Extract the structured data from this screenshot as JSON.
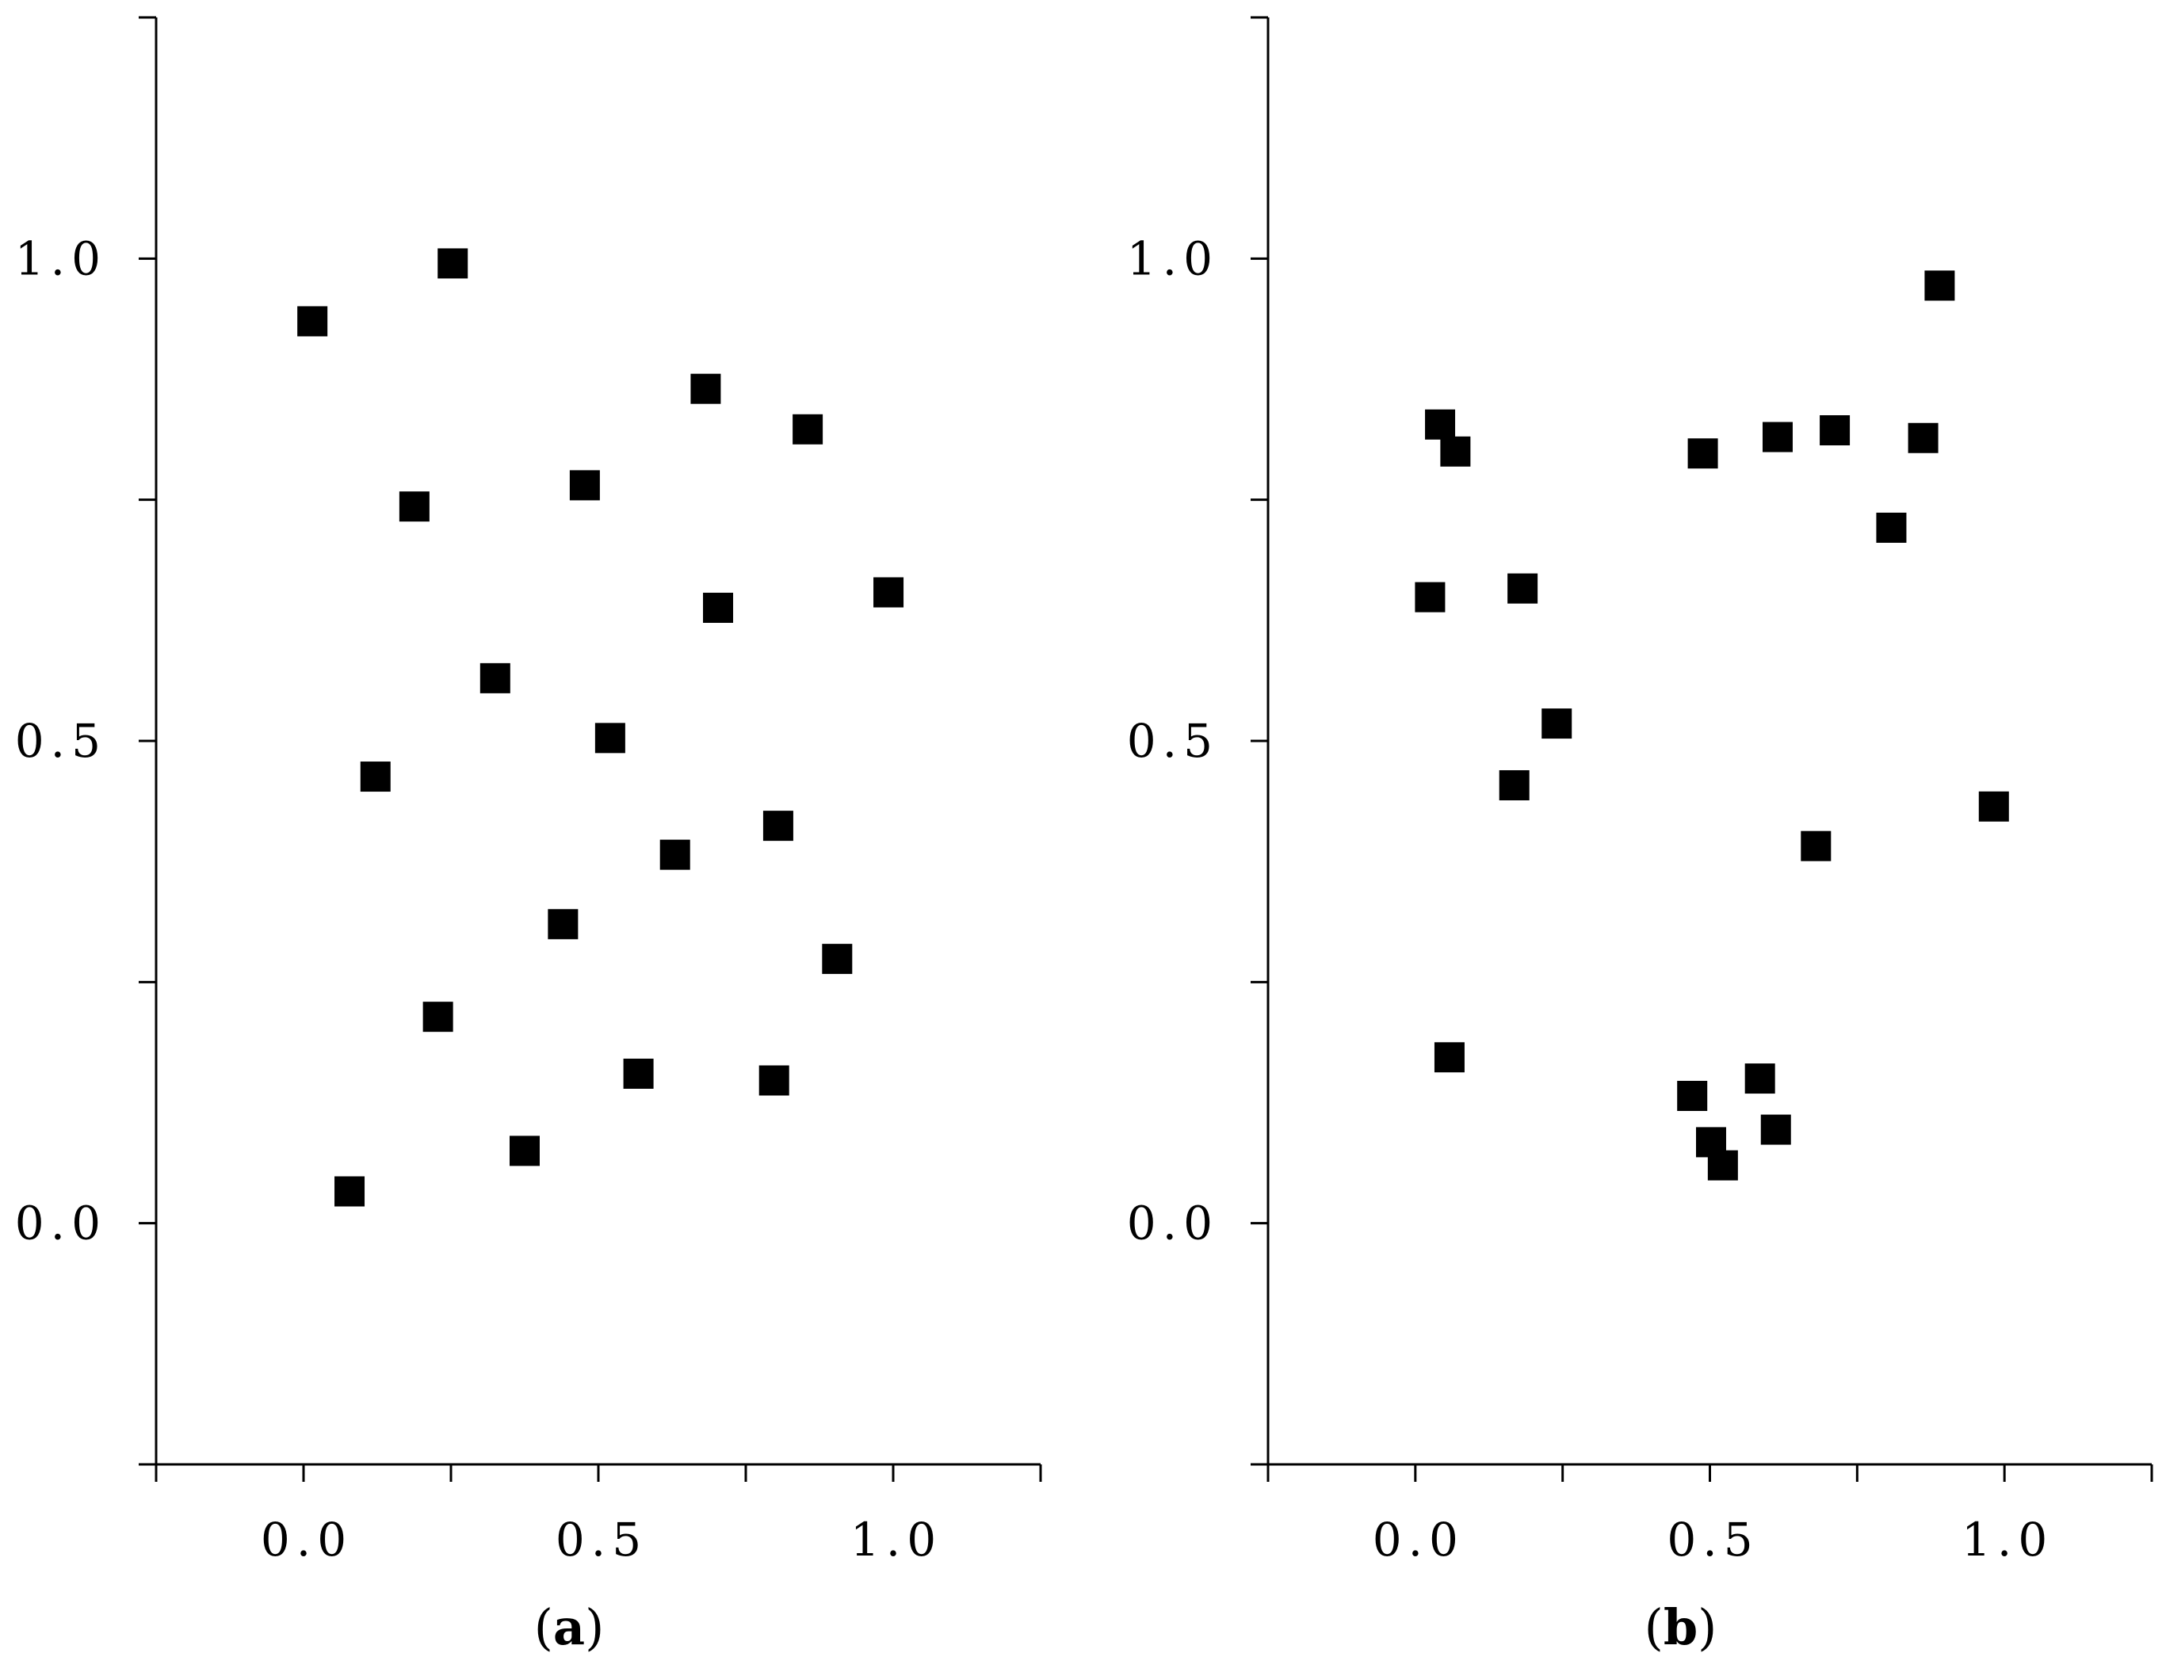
{
  "chart_data": [
    {
      "type": "scatter",
      "panel_label": "a",
      "xlim": [
        -0.25,
        1.25
      ],
      "ylim": [
        -0.25,
        1.25
      ],
      "x_ticks": [
        -0.25,
        0.0,
        0.25,
        0.5,
        0.75,
        1.0,
        1.25
      ],
      "y_ticks": [
        -0.25,
        0.0,
        0.25,
        0.5,
        0.75,
        1.0,
        1.25
      ],
      "x_tick_labels": [
        {
          "value": 0.0,
          "label": "0.0"
        },
        {
          "value": 0.5,
          "label": "0.5"
        },
        {
          "value": 1.0,
          "label": "1.0"
        }
      ],
      "y_tick_labels": [
        {
          "value": 0.0,
          "label": "0.0"
        },
        {
          "value": 0.5,
          "label": "0.5"
        },
        {
          "value": 1.0,
          "label": "1.0"
        }
      ],
      "grid": false,
      "marker": "square",
      "points": [
        {
          "x": 0.015,
          "y": 0.935
        },
        {
          "x": 0.253,
          "y": 0.995
        },
        {
          "x": 0.682,
          "y": 0.865
        },
        {
          "x": 0.855,
          "y": 0.823
        },
        {
          "x": 0.188,
          "y": 0.743
        },
        {
          "x": 0.477,
          "y": 0.765
        },
        {
          "x": 0.703,
          "y": 0.638
        },
        {
          "x": 0.992,
          "y": 0.654
        },
        {
          "x": 0.325,
          "y": 0.565
        },
        {
          "x": 0.52,
          "y": 0.503
        },
        {
          "x": 0.122,
          "y": 0.463
        },
        {
          "x": 0.805,
          "y": 0.412
        },
        {
          "x": 0.63,
          "y": 0.382
        },
        {
          "x": 0.44,
          "y": 0.31
        },
        {
          "x": 0.905,
          "y": 0.274
        },
        {
          "x": 0.228,
          "y": 0.214
        },
        {
          "x": 0.568,
          "y": 0.155
        },
        {
          "x": 0.798,
          "y": 0.148
        },
        {
          "x": 0.375,
          "y": 0.075
        },
        {
          "x": 0.078,
          "y": 0.033
        }
      ]
    },
    {
      "type": "scatter",
      "panel_label": "b",
      "xlim": [
        -0.25,
        1.25
      ],
      "ylim": [
        -0.25,
        1.25
      ],
      "x_ticks": [
        -0.25,
        0.0,
        0.25,
        0.5,
        0.75,
        1.0,
        1.25
      ],
      "y_ticks": [
        -0.25,
        0.0,
        0.25,
        0.5,
        0.75,
        1.0,
        1.25
      ],
      "x_tick_labels": [
        {
          "value": 0.0,
          "label": "0.0"
        },
        {
          "value": 0.5,
          "label": "0.5"
        },
        {
          "value": 1.0,
          "label": "1.0"
        }
      ],
      "y_tick_labels": [
        {
          "value": 0.0,
          "label": "0.0"
        },
        {
          "value": 0.5,
          "label": "0.5"
        },
        {
          "value": 1.0,
          "label": "1.0"
        }
      ],
      "grid": false,
      "marker": "square",
      "points": [
        {
          "x": 0.89,
          "y": 0.972
        },
        {
          "x": 0.042,
          "y": 0.828
        },
        {
          "x": 0.068,
          "y": 0.8
        },
        {
          "x": 0.488,
          "y": 0.798
        },
        {
          "x": 0.615,
          "y": 0.815
        },
        {
          "x": 0.712,
          "y": 0.822
        },
        {
          "x": 0.862,
          "y": 0.814
        },
        {
          "x": 0.808,
          "y": 0.721
        },
        {
          "x": 0.025,
          "y": 0.649
        },
        {
          "x": 0.182,
          "y": 0.658
        },
        {
          "x": 0.24,
          "y": 0.518
        },
        {
          "x": 0.168,
          "y": 0.454
        },
        {
          "x": 0.982,
          "y": 0.432
        },
        {
          "x": 0.68,
          "y": 0.391
        },
        {
          "x": 0.058,
          "y": 0.172
        },
        {
          "x": 0.585,
          "y": 0.15
        },
        {
          "x": 0.47,
          "y": 0.132
        },
        {
          "x": 0.502,
          "y": 0.084
        },
        {
          "x": 0.612,
          "y": 0.097
        },
        {
          "x": 0.522,
          "y": 0.06
        }
      ]
    }
  ]
}
